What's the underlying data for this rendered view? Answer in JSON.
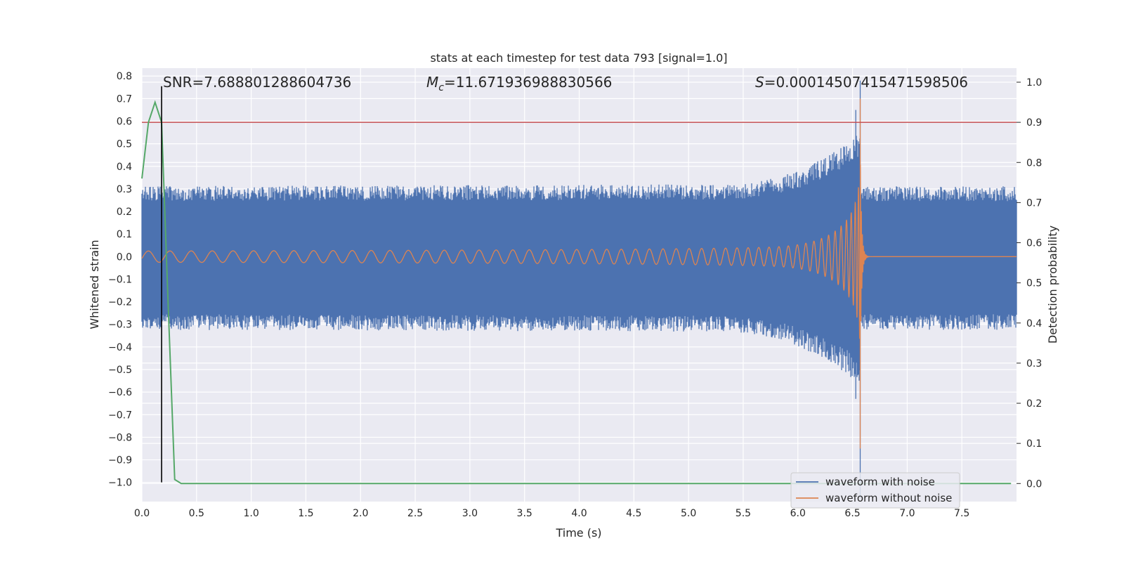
{
  "chart_data": {
    "type": "line",
    "title": "stats at each timestep for test data 793 [signal=1.0]",
    "xlabel": "Time (s)",
    "ylabel": "Whitened strain",
    "y2label": "Detection probability",
    "xlim": [
      0.0,
      8.0
    ],
    "ylim": [
      -1.085,
      0.835
    ],
    "y2lim": [
      -0.045,
      1.035
    ],
    "xticks": [
      "0.0",
      "0.5",
      "1.0",
      "1.5",
      "2.0",
      "2.5",
      "3.0",
      "3.5",
      "4.0",
      "4.5",
      "5.0",
      "5.5",
      "6.0",
      "6.5",
      "7.0",
      "7.5"
    ],
    "yticks": [
      "0.8",
      "0.7",
      "0.6",
      "0.5",
      "0.4",
      "0.3",
      "0.2",
      "0.1",
      "0.0",
      "−0.1",
      "−0.2",
      "−0.3",
      "−0.4",
      "−0.5",
      "−0.6",
      "−0.7",
      "−0.8",
      "−0.9",
      "−1.0"
    ],
    "y2ticks": [
      "1.0",
      "0.9",
      "0.8",
      "0.7",
      "0.6",
      "0.5",
      "0.4",
      "0.3",
      "0.2",
      "0.1",
      "0.0"
    ],
    "annotations": {
      "snr": "SNR=7.688801288604736",
      "mc_symbol": "M",
      "mc_sub": "c",
      "mc_value": "=11.671936988830566",
      "s_symbol": "S",
      "s_value": "=0.00014507415471598506"
    },
    "threshold": {
      "value": 0.9,
      "axis": "right",
      "color": "#c44e52"
    },
    "marker_line": {
      "x": 0.18,
      "ymin": -1.0,
      "ymax": 0.755,
      "color": "#000000"
    },
    "series": [
      {
        "name": "waveform with noise",
        "color": "#4c72b0",
        "envelope_base": 0.3,
        "merger_time": 6.57,
        "merger_peak": 0.78
      },
      {
        "name": "waveform without noise",
        "color": "#dd8452",
        "start_amplitude": 0.025,
        "merger_time": 6.57,
        "merger_peak": 0.7
      },
      {
        "name": "detection probability",
        "color": "#55a868",
        "axis": "right",
        "x": [
          0.0,
          0.06,
          0.12,
          0.18,
          0.24,
          0.3,
          0.36,
          0.42,
          7.95
        ],
        "y": [
          0.76,
          0.9,
          0.95,
          0.9,
          0.45,
          0.01,
          0.0,
          0.0,
          0.0
        ]
      }
    ],
    "legend": {
      "placement": "lower-right",
      "entries": [
        "waveform with noise",
        "waveform without noise"
      ]
    }
  }
}
